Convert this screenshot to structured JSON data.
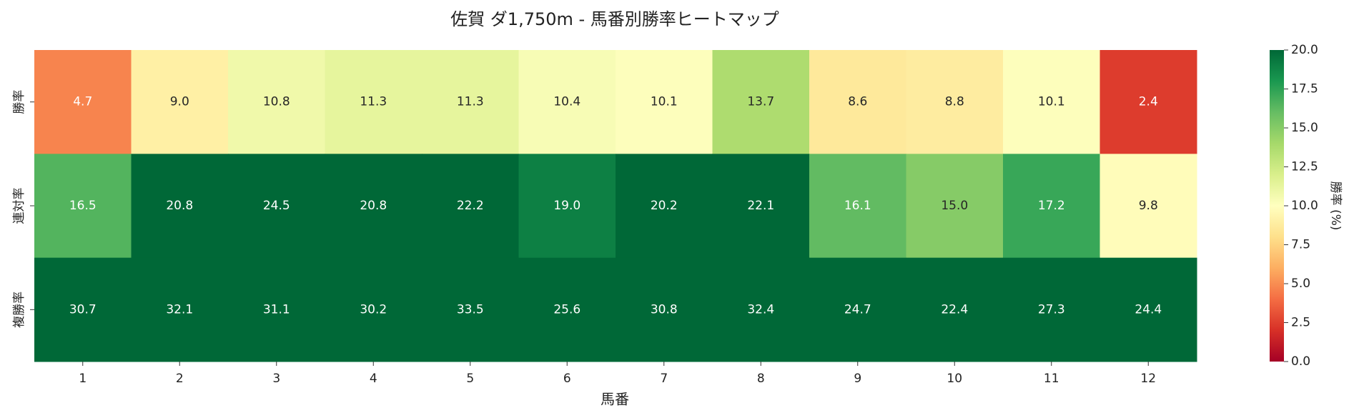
{
  "chart_data": {
    "type": "heatmap",
    "title": "佐賀 ダ1,750m - 馬番別勝率ヒートマップ",
    "xlabel": "馬番",
    "rows": [
      "勝率",
      "連対率",
      "複勝率"
    ],
    "categories": [
      "1",
      "2",
      "3",
      "4",
      "5",
      "6",
      "7",
      "8",
      "9",
      "10",
      "11",
      "12"
    ],
    "values": [
      [
        4.7,
        9.0,
        10.8,
        11.3,
        11.3,
        10.4,
        10.1,
        13.7,
        8.6,
        8.8,
        10.1,
        2.4
      ],
      [
        16.5,
        20.8,
        24.5,
        20.8,
        22.2,
        19.0,
        20.2,
        22.1,
        16.1,
        15.0,
        17.2,
        9.8
      ],
      [
        30.7,
        32.1,
        31.1,
        30.2,
        33.5,
        25.6,
        30.8,
        32.4,
        24.7,
        22.4,
        27.3,
        24.4
      ]
    ],
    "value_labels": [
      [
        "4.7",
        "9.0",
        "10.8",
        "11.3",
        "11.3",
        "10.4",
        "10.1",
        "13.7",
        "8.6",
        "8.8",
        "10.1",
        "2.4"
      ],
      [
        "16.5",
        "20.8",
        "24.5",
        "20.8",
        "22.2",
        "19.0",
        "20.2",
        "22.1",
        "16.1",
        "15.0",
        "17.2",
        "9.8"
      ],
      [
        "30.7",
        "32.1",
        "31.1",
        "30.2",
        "33.5",
        "25.6",
        "30.8",
        "32.4",
        "24.7",
        "22.4",
        "27.3",
        "24.4"
      ]
    ],
    "colorbar_label": "勝率 (%)",
    "clim": [
      0,
      20
    ],
    "cticks": [
      {
        "value": 0,
        "label": "0.0"
      },
      {
        "value": 2.5,
        "label": "2.5"
      },
      {
        "value": 5,
        "label": "5.0"
      },
      {
        "value": 7.5,
        "label": "7.5"
      },
      {
        "value": 10,
        "label": "10.0"
      },
      {
        "value": 12.5,
        "label": "12.5"
      },
      {
        "value": 15,
        "label": "15.0"
      },
      {
        "value": 17.5,
        "label": "17.5"
      },
      {
        "value": 20,
        "label": "20.0"
      }
    ],
    "colorscale": [
      "#a50026",
      "#d73027",
      "#f46d43",
      "#fdae61",
      "#fee08b",
      "#ffffbf",
      "#d9ef8b",
      "#a6d96a",
      "#66bd63",
      "#1a9850",
      "#006837"
    ]
  }
}
